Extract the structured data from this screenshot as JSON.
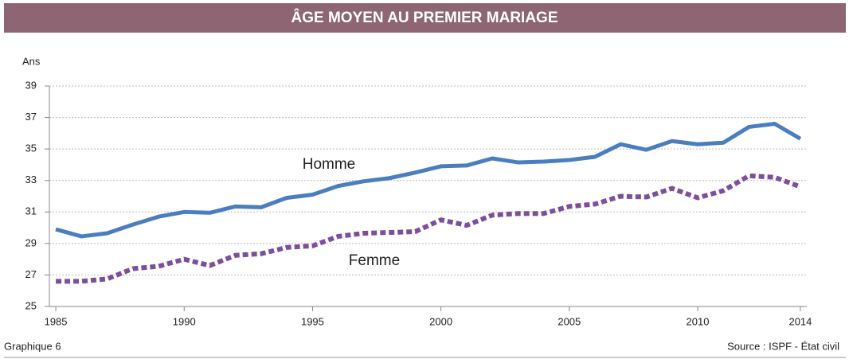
{
  "chart_data": {
    "type": "line",
    "title": "ÂGE MOYEN AU PREMIER MARIAGE",
    "y_label": "Ans",
    "x": [
      1985,
      1986,
      1987,
      1988,
      1989,
      1990,
      1991,
      1992,
      1993,
      1994,
      1995,
      1996,
      1997,
      1998,
      1999,
      2000,
      2001,
      2002,
      2003,
      2004,
      2005,
      2006,
      2007,
      2008,
      2009,
      2010,
      2011,
      2012,
      2013,
      2014
    ],
    "series": [
      {
        "name": "Homme",
        "color": "#4a7ec0",
        "values": [
          29.9,
          29.45,
          29.65,
          30.2,
          30.7,
          31.0,
          30.95,
          31.35,
          31.3,
          31.9,
          32.1,
          32.65,
          32.95,
          33.15,
          33.5,
          33.9,
          33.95,
          34.4,
          34.15,
          34.2,
          34.3,
          34.5,
          35.3,
          34.95,
          35.5,
          35.3,
          35.4,
          36.4,
          36.6,
          35.65
        ]
      },
      {
        "name": "Femme",
        "color": "#7d4f9b",
        "dashed": true,
        "values": [
          26.6,
          26.6,
          26.75,
          27.4,
          27.55,
          28.0,
          27.6,
          28.25,
          28.35,
          28.75,
          28.85,
          29.45,
          29.65,
          29.7,
          29.75,
          30.5,
          30.15,
          30.8,
          30.9,
          30.9,
          31.35,
          31.5,
          32.0,
          31.95,
          32.5,
          31.9,
          32.35,
          33.3,
          33.2,
          32.6
        ]
      }
    ],
    "xlim": [
      1984.75,
      2014.25
    ],
    "xticks": [
      1985,
      1990,
      1995,
      2000,
      2005,
      2010,
      2014
    ],
    "ylim": [
      25,
      39
    ],
    "yticks": [
      25,
      27,
      29,
      31,
      33,
      35,
      37,
      39
    ],
    "grid": true,
    "figure_label": "Graphique 6",
    "source": "Source : ISPF - État civil"
  }
}
